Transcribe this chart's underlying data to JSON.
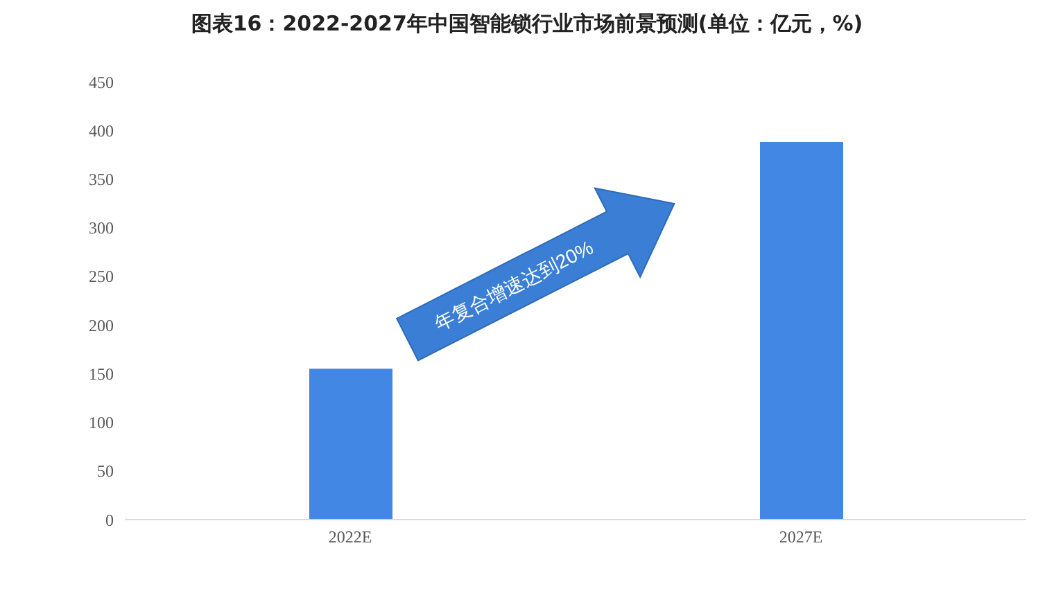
{
  "chart_data": {
    "type": "bar",
    "title": "图表16：2022-2027年中国智能锁行业市场前景预测(单位：亿元，%)",
    "categories": [
      "2022E",
      "2027E"
    ],
    "values": [
      155,
      388
    ],
    "color": "#4187e3",
    "ylim": [
      0,
      450
    ],
    "yticks": [
      0,
      50,
      100,
      150,
      200,
      250,
      300,
      350,
      400,
      450
    ],
    "annotations": [
      "年复合增速达到20%"
    ]
  }
}
